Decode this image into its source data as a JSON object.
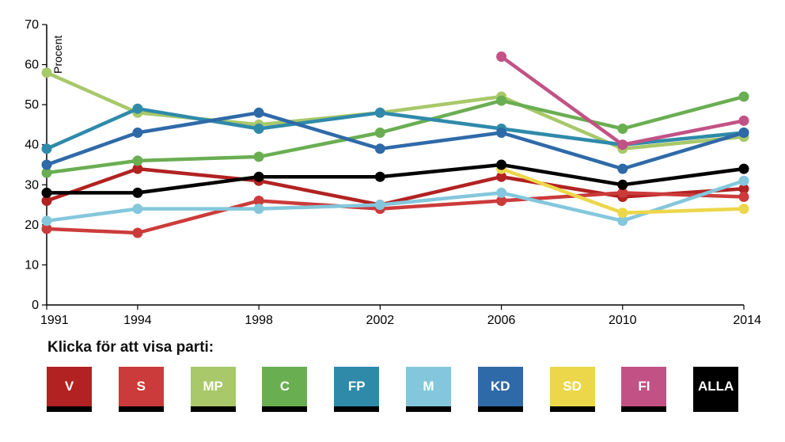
{
  "chart_data": {
    "type": "line",
    "ylabel": "Procent",
    "ylim": [
      0,
      70
    ],
    "yticks": [
      "0",
      "10",
      "20",
      "30",
      "40",
      "50",
      "60",
      "70"
    ],
    "x": [
      "1991",
      "1994",
      "1998",
      "2002",
      "2006",
      "2010",
      "2014"
    ],
    "series": [
      {
        "name": "V",
        "color": "#b22222",
        "values": [
          26,
          34,
          31,
          25,
          32,
          27,
          29
        ]
      },
      {
        "name": "S",
        "color": "#cc3b3b",
        "values": [
          19,
          18,
          26,
          24,
          26,
          28,
          27
        ]
      },
      {
        "name": "MP",
        "color": "#a8c86a",
        "values": [
          58,
          48,
          45,
          48,
          52,
          39,
          42
        ]
      },
      {
        "name": "C",
        "color": "#6aae52",
        "values": [
          33,
          36,
          37,
          43,
          51,
          44,
          52
        ]
      },
      {
        "name": "FP",
        "color": "#2f8aaa",
        "values": [
          39,
          49,
          44,
          48,
          44,
          40,
          43
        ]
      },
      {
        "name": "M",
        "color": "#84c7dc",
        "values": [
          21,
          24,
          24,
          25,
          28,
          21,
          31
        ]
      },
      {
        "name": "KD",
        "color": "#2f6aa8",
        "values": [
          35,
          43,
          48,
          39,
          43,
          34,
          43
        ]
      },
      {
        "name": "SD",
        "color": "#ecd74a",
        "values": [
          null,
          null,
          null,
          null,
          34,
          23,
          24
        ]
      },
      {
        "name": "FI",
        "color": "#c25285",
        "values": [
          null,
          null,
          null,
          null,
          62,
          40,
          46
        ]
      },
      {
        "name": "ALLA",
        "color": "#000000",
        "values": [
          28,
          28,
          32,
          32,
          35,
          30,
          34
        ]
      }
    ]
  },
  "legend": {
    "prompt": "Klicka för att visa parti:",
    "buttons": [
      {
        "label": "V",
        "color": "#b22222"
      },
      {
        "label": "S",
        "color": "#cc3b3b"
      },
      {
        "label": "MP",
        "color": "#a8c86a"
      },
      {
        "label": "C",
        "color": "#6aae52"
      },
      {
        "label": "FP",
        "color": "#2f8aaa"
      },
      {
        "label": "M",
        "color": "#84c7dc"
      },
      {
        "label": "KD",
        "color": "#2f6aa8"
      },
      {
        "label": "SD",
        "color": "#ecd74a"
      },
      {
        "label": "FI",
        "color": "#c25285"
      },
      {
        "label": "ALLA",
        "color": "#000000"
      }
    ]
  }
}
